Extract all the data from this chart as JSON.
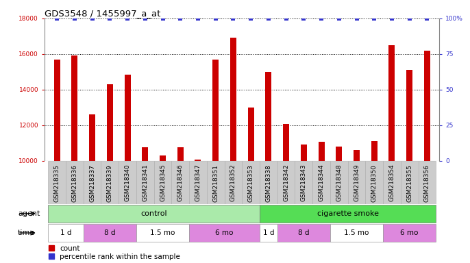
{
  "title": "GDS3548 / 1455997_a_at",
  "samples": [
    "GSM218335",
    "GSM218336",
    "GSM218337",
    "GSM218339",
    "GSM218340",
    "GSM218341",
    "GSM218345",
    "GSM218346",
    "GSM218347",
    "GSM218351",
    "GSM218352",
    "GSM218353",
    "GSM218338",
    "GSM218342",
    "GSM218343",
    "GSM218344",
    "GSM218348",
    "GSM218349",
    "GSM218350",
    "GSM218354",
    "GSM218355",
    "GSM218356"
  ],
  "counts": [
    15700,
    15900,
    12600,
    14300,
    14850,
    10750,
    10300,
    10750,
    10050,
    15700,
    16900,
    13000,
    15000,
    12050,
    10900,
    11050,
    10800,
    10600,
    11100,
    16500,
    15100,
    16200
  ],
  "percentile_ranks": [
    100,
    100,
    100,
    100,
    100,
    100,
    100,
    100,
    100,
    100,
    100,
    100,
    100,
    100,
    100,
    100,
    100,
    100,
    100,
    100,
    100,
    100
  ],
  "ylim_left": [
    10000,
    18000
  ],
  "ylim_right": [
    0,
    100
  ],
  "yticks_left": [
    10000,
    12000,
    14000,
    16000,
    18000
  ],
  "yticks_right": [
    0,
    25,
    50,
    75,
    100
  ],
  "ytick_labels_right": [
    "0",
    "25",
    "50",
    "75",
    "100%"
  ],
  "bar_color": "#cc0000",
  "dot_color": "#3333cc",
  "background_color": "#ffffff",
  "xtick_bg": "#cccccc",
  "agent_control_color": "#90ee90",
  "agent_smoke_color": "#44cc44",
  "time_white_color": "#ffffff",
  "time_purple_color": "#dd88dd",
  "agent_groups": [
    {
      "label": "control",
      "start": 0,
      "end": 12,
      "color": "#aaeaaa"
    },
    {
      "label": "cigarette smoke",
      "start": 12,
      "end": 22,
      "color": "#55dd55"
    }
  ],
  "time_groups": [
    {
      "label": "1 d",
      "start": 0,
      "end": 2,
      "color": "#ffffff"
    },
    {
      "label": "8 d",
      "start": 2,
      "end": 5,
      "color": "#dd88dd"
    },
    {
      "label": "1.5 mo",
      "start": 5,
      "end": 8,
      "color": "#ffffff"
    },
    {
      "label": "6 mo",
      "start": 8,
      "end": 12,
      "color": "#dd88dd"
    },
    {
      "label": "1 d",
      "start": 12,
      "end": 13,
      "color": "#ffffff"
    },
    {
      "label": "8 d",
      "start": 13,
      "end": 16,
      "color": "#dd88dd"
    },
    {
      "label": "1.5 mo",
      "start": 16,
      "end": 19,
      "color": "#ffffff"
    },
    {
      "label": "6 mo",
      "start": 19,
      "end": 22,
      "color": "#dd88dd"
    }
  ],
  "legend_items": [
    {
      "label": "count",
      "color": "#cc0000"
    },
    {
      "label": "percentile rank within the sample",
      "color": "#3333cc"
    }
  ],
  "bar_width": 0.35,
  "title_fontsize": 9.5,
  "tick_fontsize": 6.5,
  "annot_fontsize": 8,
  "legend_fontsize": 7.5
}
